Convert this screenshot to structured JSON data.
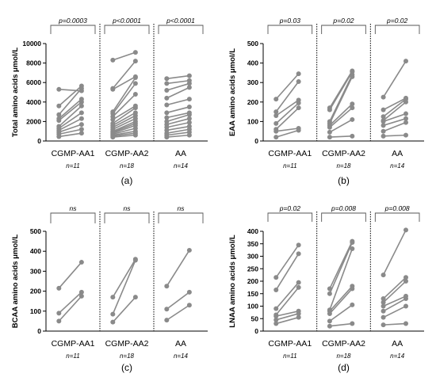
{
  "colors": {
    "series": "#8a8a8a",
    "axis": "#000000",
    "bracket": "#555555"
  },
  "chart_data": [
    {
      "panel": "(a)",
      "type": "line",
      "ylabel": "Total amino acids μmol/L",
      "ylim": [
        0,
        10000
      ],
      "yticks": [
        0,
        2000,
        4000,
        6000,
        8000,
        10000
      ],
      "yticklabels": [
        "0",
        "2000",
        "4000",
        "6000",
        "8000",
        "10000"
      ],
      "groups": [
        {
          "label": "CGMP-AA1",
          "n": "n=11",
          "significance": "p=0.0003",
          "pairs": [
            [
              5300,
              5150
            ],
            [
              3600,
              5650
            ],
            [
              2700,
              5400
            ],
            [
              2300,
              4300
            ],
            [
              2100,
              4000
            ],
            [
              1500,
              3600
            ],
            [
              1300,
              2900
            ],
            [
              1100,
              2300
            ],
            [
              900,
              1700
            ],
            [
              700,
              1200
            ],
            [
              450,
              800
            ]
          ]
        },
        {
          "label": "CGMP-AA2",
          "n": "n=18",
          "significance": "p<0.0001",
          "pairs": [
            [
              8300,
              9100
            ],
            [
              5400,
              8200
            ],
            [
              5300,
              6600
            ],
            [
              3000,
              6500
            ],
            [
              2800,
              5900
            ],
            [
              2500,
              4800
            ],
            [
              2200,
              3600
            ],
            [
              1800,
              3400
            ],
            [
              1600,
              2900
            ],
            [
              1400,
              2600
            ],
            [
              1200,
              2300
            ],
            [
              1000,
              2000
            ],
            [
              900,
              1800
            ],
            [
              800,
              1600
            ],
            [
              700,
              1300
            ],
            [
              600,
              1000
            ],
            [
              500,
              800
            ],
            [
              400,
              600
            ]
          ]
        },
        {
          "label": "AA",
          "n": "n=14",
          "significance": "p<0.0001",
          "pairs": [
            [
              6400,
              6700
            ],
            [
              5900,
              6200
            ],
            [
              5200,
              5900
            ],
            [
              4400,
              5500
            ],
            [
              3700,
              4300
            ],
            [
              2900,
              3500
            ],
            [
              2400,
              2900
            ],
            [
              2000,
              2700
            ],
            [
              1700,
              2300
            ],
            [
              1400,
              1900
            ],
            [
              1100,
              1500
            ],
            [
              800,
              1200
            ],
            [
              600,
              900
            ],
            [
              400,
              600
            ]
          ]
        }
      ]
    },
    {
      "panel": "(b)",
      "type": "line",
      "ylabel": "EAA amino acids μmol/L",
      "ylim": [
        0,
        500
      ],
      "yticks": [
        0,
        100,
        200,
        300,
        400,
        500
      ],
      "yticklabels": [
        "0",
        "100",
        "200",
        "300",
        "400",
        "500"
      ],
      "groups": [
        {
          "label": "CGMP-AA1",
          "n": "n=11",
          "significance": "p=0.03",
          "pairs": [
            [
              215,
              345
            ],
            [
              150,
              305
            ],
            [
              130,
              210
            ],
            [
              90,
              195
            ],
            [
              60,
              170
            ],
            [
              50,
              65
            ],
            [
              20,
              55
            ]
          ]
        },
        {
          "label": "CGMP-AA2",
          "n": "n=18",
          "significance": "p=0.02",
          "pairs": [
            [
              170,
              360
            ],
            [
              160,
              355
            ],
            [
              100,
              340
            ],
            [
              90,
              330
            ],
            [
              80,
              190
            ],
            [
              70,
              170
            ],
            [
              45,
              110
            ],
            [
              20,
              25
            ]
          ]
        },
        {
          "label": "AA",
          "n": "n=14",
          "significance": "p=0.02",
          "pairs": [
            [
              225,
              410
            ],
            [
              160,
              220
            ],
            [
              125,
              215
            ],
            [
              105,
              200
            ],
            [
              100,
              140
            ],
            [
              80,
              115
            ],
            [
              50,
              95
            ],
            [
              25,
              30
            ]
          ]
        }
      ]
    },
    {
      "panel": "(c)",
      "type": "line",
      "ylabel": "BCAA amino acids μmol/L",
      "ylim": [
        0,
        500
      ],
      "yticks": [
        0,
        100,
        200,
        300,
        400,
        500
      ],
      "yticklabels": [
        "0",
        "100",
        "200",
        "300",
        "400",
        "500"
      ],
      "groups": [
        {
          "label": "CGMP-AA1",
          "n": "n=11",
          "significance": "ns",
          "pairs": [
            [
              215,
              345
            ],
            [
              90,
              195
            ],
            [
              50,
              175
            ]
          ]
        },
        {
          "label": "CGMP-AA2",
          "n": "n=18",
          "significance": "ns",
          "pairs": [
            [
              170,
              360
            ],
            [
              85,
              355
            ],
            [
              45,
              170
            ]
          ]
        },
        {
          "label": "AA",
          "n": "n=14",
          "significance": "ns",
          "pairs": [
            [
              225,
              405
            ],
            [
              110,
              195
            ],
            [
              55,
              130
            ]
          ]
        }
      ]
    },
    {
      "panel": "(d)",
      "type": "line",
      "ylabel": "LNAA amino acids μmol/L",
      "ylim": [
        0,
        400
      ],
      "yticks": [
        0,
        50,
        100,
        150,
        200,
        250,
        300,
        350,
        400
      ],
      "yticklabels": [
        "0",
        "50",
        "100",
        "150",
        "200",
        "250",
        "300",
        "350",
        "400"
      ],
      "groups": [
        {
          "label": "CGMP-AA1",
          "n": "n=11",
          "significance": "p=0.02",
          "pairs": [
            [
              215,
              345
            ],
            [
              165,
              310
            ],
            [
              90,
              195
            ],
            [
              65,
              175
            ],
            [
              60,
              80
            ],
            [
              45,
              70
            ],
            [
              30,
              55
            ]
          ]
        },
        {
          "label": "CGMP-AA2",
          "n": "n=18",
          "significance": "p=0.008",
          "pairs": [
            [
              170,
              360
            ],
            [
              150,
              355
            ],
            [
              85,
              330
            ],
            [
              80,
              180
            ],
            [
              70,
              170
            ],
            [
              40,
              105
            ],
            [
              20,
              30
            ]
          ]
        },
        {
          "label": "AA",
          "n": "n=14",
          "significance": "p=0.008",
          "pairs": [
            [
              225,
              405
            ],
            [
              130,
              215
            ],
            [
              115,
              200
            ],
            [
              100,
              140
            ],
            [
              80,
              130
            ],
            [
              55,
              100
            ],
            [
              25,
              30
            ]
          ]
        }
      ]
    }
  ]
}
